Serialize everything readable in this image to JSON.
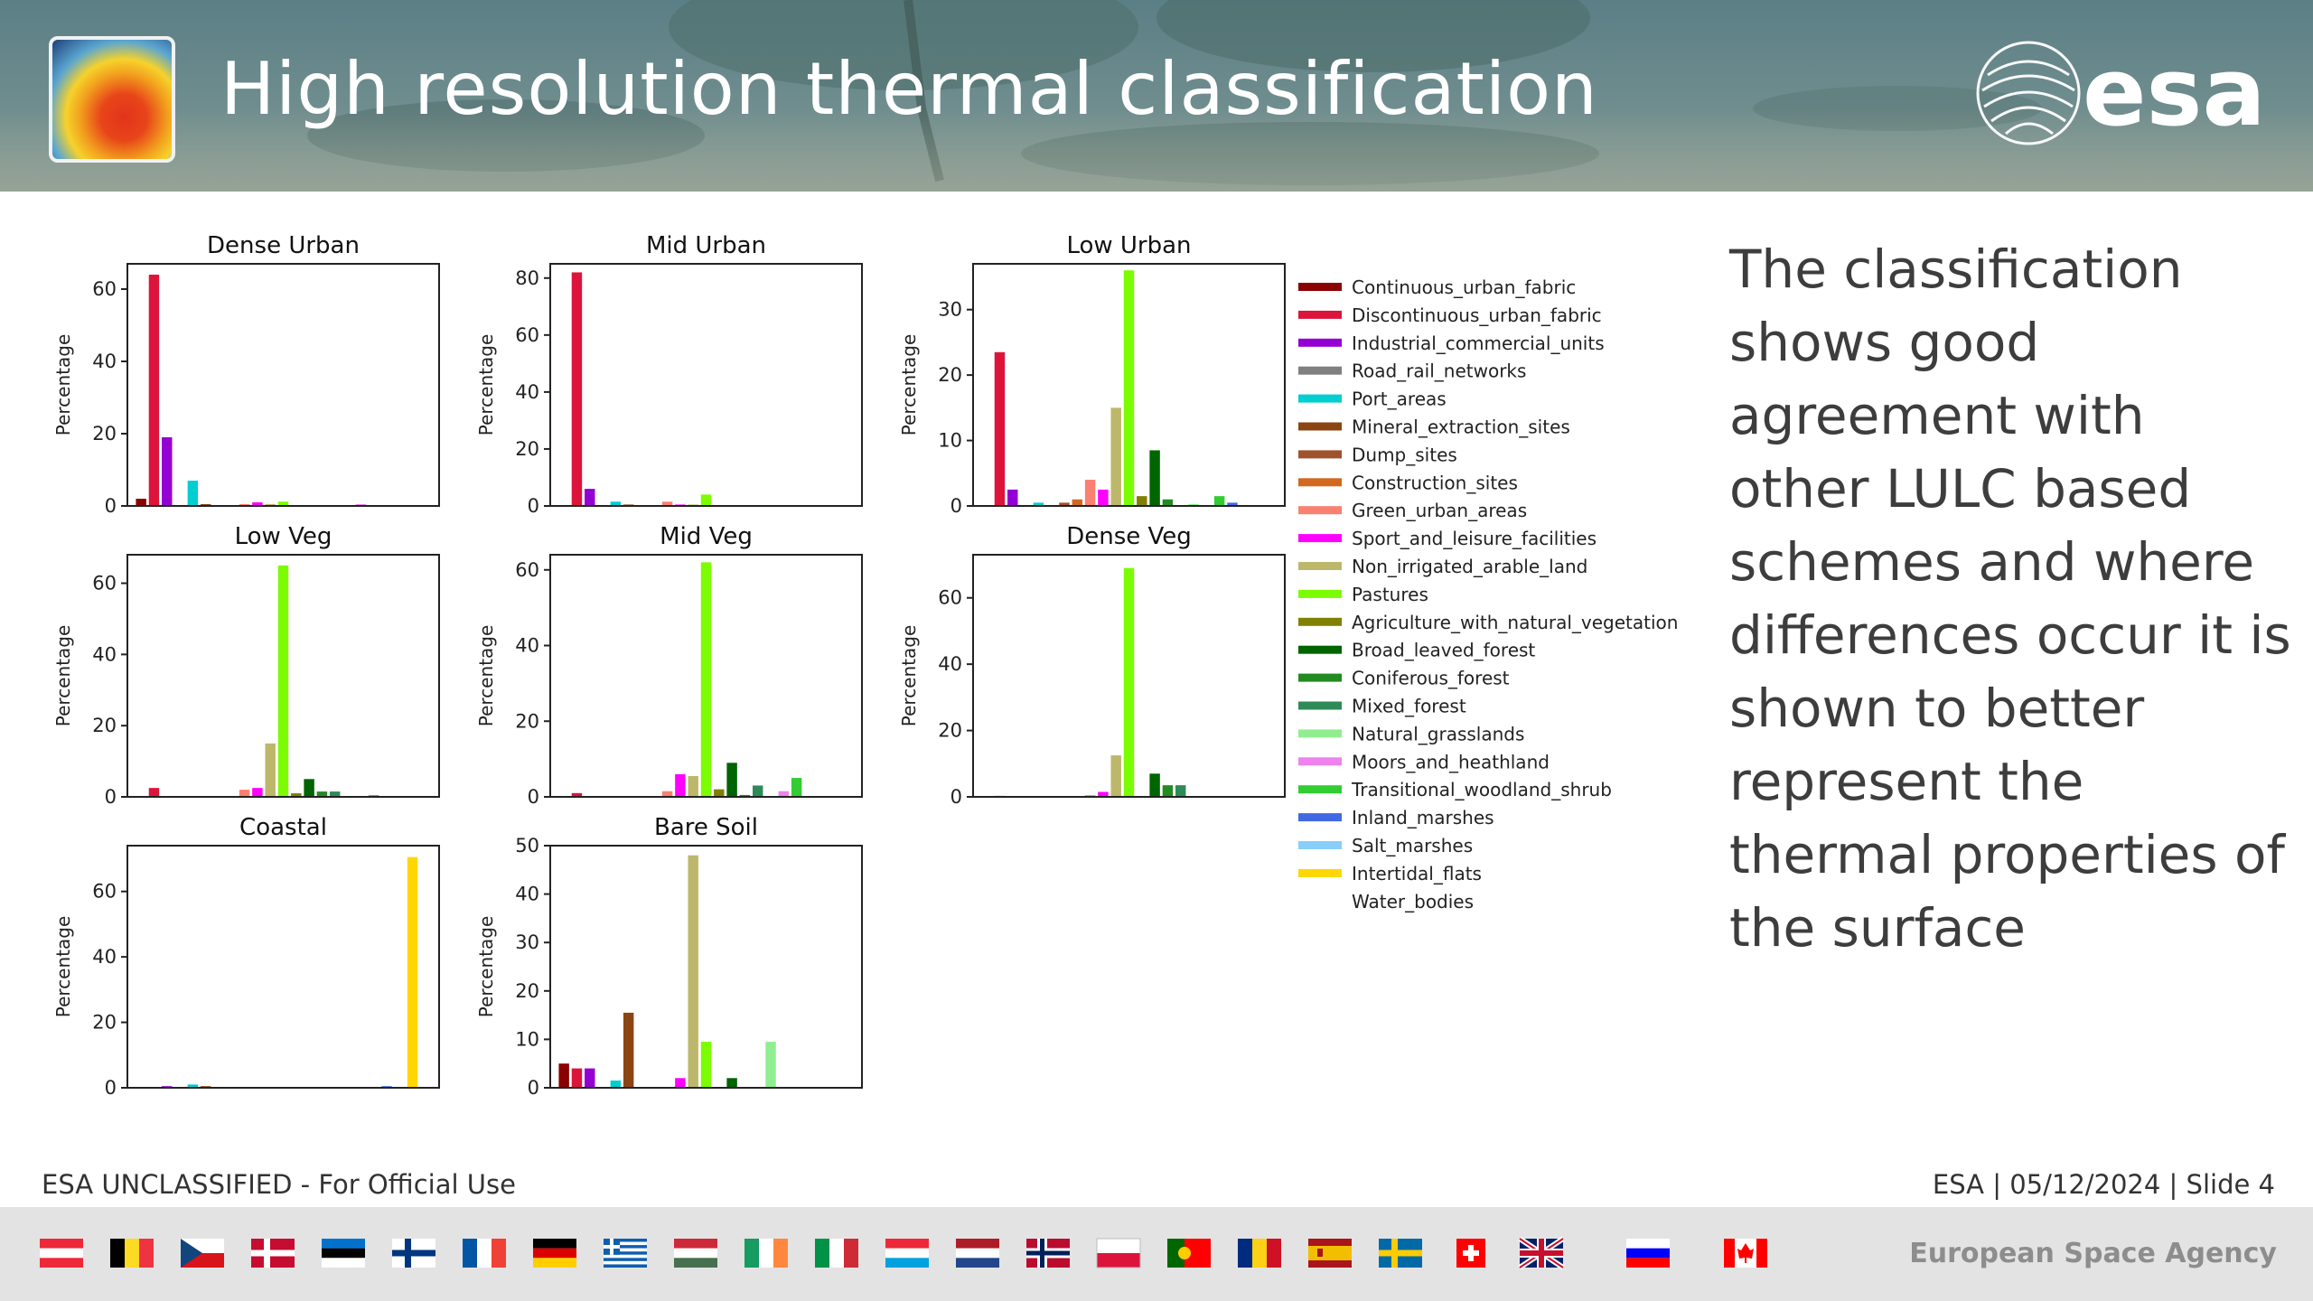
{
  "slide": {
    "title": "High resolution thermal classification",
    "logo_text": "esa",
    "side_text": "The classification shows good agreement with other LULC based schemes and where differences occur it is shown to better represent the thermal properties of the surface",
    "footer_left": "ESA UNCLASSIFIED - For Official Use",
    "footer_right": "ESA | 05/12/2024 | Slide  4",
    "agency": "European Space Agency",
    "flags": [
      "austria-flag",
      "belgium-flag",
      "czechia-flag",
      "denmark-flag",
      "estonia-flag",
      "finland-flag",
      "france-flag",
      "germany-flag",
      "greece-flag",
      "hungary-flag",
      "ireland-flag",
      "italy-flag",
      "luxembourg-flag",
      "netherlands-flag",
      "norway-flag",
      "poland-flag",
      "portugal-flag",
      "romania-flag",
      "spain-flag",
      "sweden-flag",
      "switzerland-flag",
      "uk-flag",
      "slovenia-flag",
      "canada-flag"
    ]
  },
  "chart_data": {
    "type": "bar",
    "ylabel": "Percentage",
    "legend_placement": "right",
    "categories": [
      "Continuous_urban_fabric",
      "Discontinuous_urban_fabric",
      "Industrial_commercial_units",
      "Road_rail_networks",
      "Port_areas",
      "Mineral_extraction_sites",
      "Dump_sites",
      "Construction_sites",
      "Green_urban_areas",
      "Sport_and_leisure_facilities",
      "Non_irrigated_arable_land",
      "Pastures",
      "Agriculture_with_natural_vegetation",
      "Broad_leaved_forest",
      "Coniferous_forest",
      "Mixed_forest",
      "Natural_grasslands",
      "Moors_and_heathland",
      "Transitional_woodland_shrub",
      "Inland_marshes",
      "Salt_marshes",
      "Intertidal_flats",
      "Water_bodies"
    ],
    "colors": [
      "#8b0000",
      "#dc143c",
      "#9400d3",
      "#808080",
      "#00ced1",
      "#8b4513",
      "#a0522d",
      "#d2691e",
      "#fa8072",
      "#ff00ff",
      "#bdb76b",
      "#7cfc00",
      "#808000",
      "#006400",
      "#228b22",
      "#2e8b57",
      "#90ee90",
      "#ee82ee",
      "#32cd32",
      "#4169e1",
      "#87cefa",
      "#ffd700",
      "#ffffff"
    ],
    "panels": [
      {
        "title": "Dense Urban",
        "ylim": [
          0,
          67
        ],
        "yticks": [
          0,
          20,
          40,
          60
        ],
        "bars": [
          {
            "i": 0,
            "v": 2
          },
          {
            "i": 1,
            "v": 64
          },
          {
            "i": 2,
            "v": 19
          },
          {
            "i": 4,
            "v": 7
          },
          {
            "i": 5,
            "v": 0.5
          },
          {
            "i": 8,
            "v": 0.5
          },
          {
            "i": 9,
            "v": 1
          },
          {
            "i": 10,
            "v": 0.5
          },
          {
            "i": 11,
            "v": 1.2
          },
          {
            "i": 17,
            "v": 0.5
          }
        ]
      },
      {
        "title": "Mid Urban",
        "ylim": [
          0,
          85
        ],
        "yticks": [
          0,
          20,
          40,
          60,
          80
        ],
        "bars": [
          {
            "i": 1,
            "v": 82
          },
          {
            "i": 2,
            "v": 6
          },
          {
            "i": 4,
            "v": 1.5
          },
          {
            "i": 5,
            "v": 0.5
          },
          {
            "i": 8,
            "v": 1.5
          },
          {
            "i": 9,
            "v": 0.5
          },
          {
            "i": 10,
            "v": 0.5
          },
          {
            "i": 11,
            "v": 4
          },
          {
            "i": 13,
            "v": 0.3
          },
          {
            "i": 16,
            "v": 0.3
          }
        ]
      },
      {
        "title": "Low Urban",
        "ylim": [
          0,
          37
        ],
        "yticks": [
          0,
          10,
          20,
          30
        ],
        "bars": [
          {
            "i": 1,
            "v": 23.5
          },
          {
            "i": 2,
            "v": 2.5
          },
          {
            "i": 4,
            "v": 0.5
          },
          {
            "i": 6,
            "v": 0.5
          },
          {
            "i": 7,
            "v": 1
          },
          {
            "i": 8,
            "v": 4
          },
          {
            "i": 9,
            "v": 2.5
          },
          {
            "i": 10,
            "v": 15
          },
          {
            "i": 11,
            "v": 36
          },
          {
            "i": 12,
            "v": 1.5
          },
          {
            "i": 13,
            "v": 8.5
          },
          {
            "i": 14,
            "v": 1
          },
          {
            "i": 16,
            "v": 0.3
          },
          {
            "i": 18,
            "v": 1.5
          },
          {
            "i": 19,
            "v": 0.5
          }
        ]
      },
      {
        "title": "Low Veg",
        "ylim": [
          0,
          68
        ],
        "yticks": [
          0,
          20,
          40,
          60
        ],
        "bars": [
          {
            "i": 1,
            "v": 2.5
          },
          {
            "i": 8,
            "v": 2
          },
          {
            "i": 9,
            "v": 2.5
          },
          {
            "i": 10,
            "v": 15
          },
          {
            "i": 11,
            "v": 65
          },
          {
            "i": 12,
            "v": 1
          },
          {
            "i": 13,
            "v": 5
          },
          {
            "i": 14,
            "v": 1.5
          },
          {
            "i": 15,
            "v": 1.5
          },
          {
            "i": 18,
            "v": 0.5
          }
        ]
      },
      {
        "title": "Mid Veg",
        "ylim": [
          0,
          64
        ],
        "yticks": [
          0,
          20,
          40,
          60
        ],
        "bars": [
          {
            "i": 1,
            "v": 1
          },
          {
            "i": 8,
            "v": 1.5
          },
          {
            "i": 9,
            "v": 6
          },
          {
            "i": 10,
            "v": 5.5
          },
          {
            "i": 11,
            "v": 62
          },
          {
            "i": 12,
            "v": 2
          },
          {
            "i": 13,
            "v": 9
          },
          {
            "i": 14,
            "v": 0.5
          },
          {
            "i": 15,
            "v": 3
          },
          {
            "i": 17,
            "v": 1.5
          },
          {
            "i": 18,
            "v": 5
          }
        ]
      },
      {
        "title": "Dense Veg",
        "ylim": [
          0,
          73
        ],
        "yticks": [
          0,
          20,
          40,
          60
        ],
        "bars": [
          {
            "i": 1,
            "v": 0.3
          },
          {
            "i": 8,
            "v": 0.5
          },
          {
            "i": 9,
            "v": 1.5
          },
          {
            "i": 10,
            "v": 12.5
          },
          {
            "i": 11,
            "v": 69
          },
          {
            "i": 13,
            "v": 7
          },
          {
            "i": 14,
            "v": 3.5
          },
          {
            "i": 15,
            "v": 3.5
          }
        ]
      },
      {
        "title": "Coastal",
        "ylim": [
          0,
          74
        ],
        "yticks": [
          0,
          20,
          40,
          60
        ],
        "bars": [
          {
            "i": 2,
            "v": 0.5
          },
          {
            "i": 4,
            "v": 1
          },
          {
            "i": 5,
            "v": 0.5
          },
          {
            "i": 19,
            "v": 0.5
          },
          {
            "i": 21,
            "v": 70.5
          }
        ]
      },
      {
        "title": "Bare Soil",
        "ylim": [
          0,
          50
        ],
        "yticks": [
          0,
          10,
          20,
          30,
          40,
          50
        ],
        "bars": [
          {
            "i": 0,
            "v": 5
          },
          {
            "i": 1,
            "v": 4
          },
          {
            "i": 2,
            "v": 4
          },
          {
            "i": 4,
            "v": 1.5
          },
          {
            "i": 5,
            "v": 15.5
          },
          {
            "i": 9,
            "v": 2
          },
          {
            "i": 10,
            "v": 48
          },
          {
            "i": 11,
            "v": 9.5
          },
          {
            "i": 13,
            "v": 2
          },
          {
            "i": 16,
            "v": 9.5
          }
        ]
      }
    ]
  }
}
